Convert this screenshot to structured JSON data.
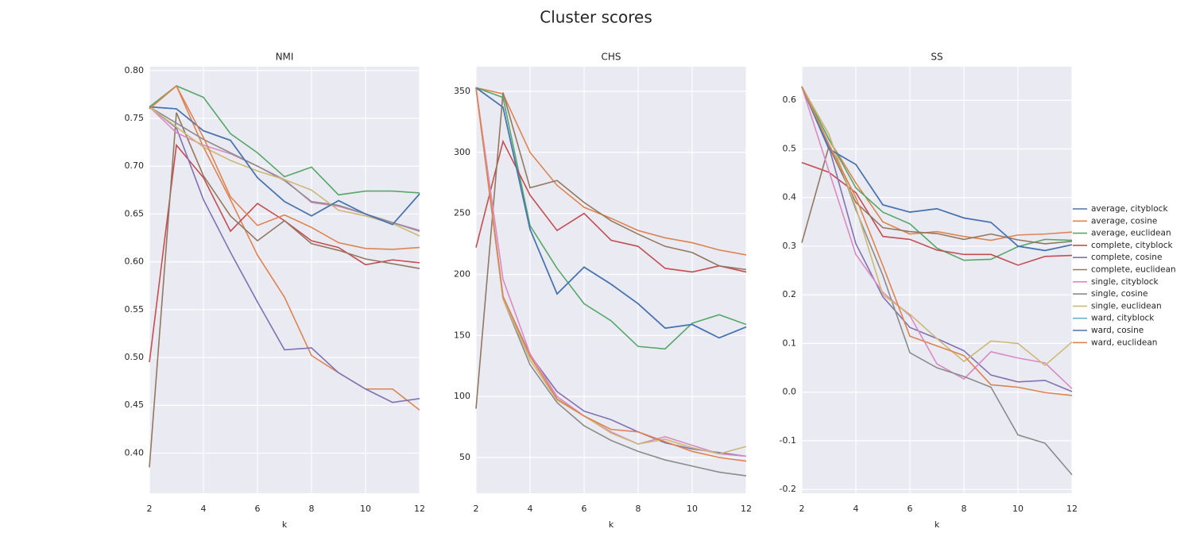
{
  "chart_data": {
    "type": "line",
    "title": "Cluster scores",
    "xlabel": "k",
    "x": [
      2,
      3,
      4,
      5,
      6,
      7,
      8,
      9,
      10,
      11,
      12
    ],
    "xlim": [
      2,
      12
    ],
    "xticks": [
      2,
      4,
      6,
      8,
      10,
      12
    ],
    "grid": true,
    "legend": "right",
    "series": [
      {
        "name": "average, cityblock",
        "color": "#4c72b0"
      },
      {
        "name": "average, cosine",
        "color": "#dd8452"
      },
      {
        "name": "average, euclidean",
        "color": "#55a868"
      },
      {
        "name": "complete, cityblock",
        "color": "#c44e52"
      },
      {
        "name": "complete, cosine",
        "color": "#8172b3"
      },
      {
        "name": "complete, euclidean",
        "color": "#937860"
      },
      {
        "name": "single, cityblock",
        "color": "#da8bc3"
      },
      {
        "name": "single, cosine",
        "color": "#8c8c8c"
      },
      {
        "name": "single, euclidean",
        "color": "#ccb974"
      },
      {
        "name": "ward, cityblock",
        "color": "#64b5cd"
      },
      {
        "name": "ward, cosine",
        "color": "#4c72b0"
      },
      {
        "name": "ward, euclidean",
        "color": "#dd8452"
      }
    ],
    "panels": [
      {
        "title": "NMI",
        "ylim": [
          0.358,
          0.804
        ],
        "yticks": [
          {
            "value": 0.4,
            "label": "0.40"
          },
          0.45,
          {
            "value": 0.5,
            "label": "0.50"
          },
          0.55,
          {
            "value": 0.6,
            "label": "0.60"
          },
          0.65,
          {
            "value": 0.7,
            "label": "0.70"
          },
          0.75,
          {
            "value": 0.8,
            "label": "0.80"
          }
        ],
        "values": [
          [
            0.762,
            0.76,
            0.737,
            0.727,
            0.688,
            0.663,
            0.648,
            0.664,
            0.65,
            0.639,
            0.671
          ],
          [
            0.76,
            0.784,
            0.72,
            0.665,
            0.607,
            0.563,
            0.502,
            0.484,
            0.467,
            0.467,
            0.445
          ],
          [
            0.762,
            0.784,
            0.772,
            0.734,
            0.714,
            0.689,
            0.699,
            0.67,
            0.674,
            0.674,
            0.672
          ],
          [
            0.495,
            0.722,
            0.688,
            0.632,
            0.661,
            0.643,
            0.622,
            0.615,
            0.597,
            0.602,
            0.599
          ],
          [
            0.762,
            0.74,
            0.665,
            0.61,
            0.558,
            0.508,
            0.51,
            0.484,
            0.467,
            0.453,
            0.457
          ],
          [
            0.385,
            0.756,
            0.69,
            0.648,
            0.622,
            0.643,
            0.619,
            0.612,
            0.603,
            0.598,
            0.593
          ],
          [
            0.762,
            0.735,
            0.722,
            0.713,
            0.7,
            0.686,
            0.662,
            0.658,
            0.65,
            0.641,
            0.633
          ],
          [
            0.762,
            0.745,
            0.728,
            0.714,
            0.7,
            0.685,
            0.663,
            0.659,
            0.65,
            0.641,
            0.632
          ],
          [
            0.762,
            0.741,
            0.72,
            0.706,
            0.695,
            0.686,
            0.675,
            0.654,
            0.648,
            0.64,
            0.627
          ],
          [
            0.762,
            0.76,
            0.737,
            0.727,
            0.688,
            0.663,
            0.648,
            0.664,
            0.65,
            0.639,
            0.671
          ],
          [
            0.762,
            0.76,
            0.737,
            0.727,
            0.688,
            0.663,
            0.648,
            0.664,
            0.65,
            0.639,
            0.671
          ],
          [
            0.76,
            0.784,
            0.73,
            0.668,
            0.638,
            0.649,
            0.636,
            0.62,
            0.614,
            0.613,
            0.615
          ]
        ]
      },
      {
        "title": "CHS",
        "ylim": [
          20.7,
          370.2
        ],
        "yticks": [
          50,
          100,
          150,
          200,
          250,
          300,
          350
        ],
        "values": [
          [
            353,
            337,
            237,
            184,
            206,
            192,
            176,
            156,
            159,
            148,
            157
          ],
          [
            353,
            348,
            300,
            273,
            255,
            246,
            236,
            230,
            226,
            220,
            216
          ],
          [
            353,
            345,
            240,
            205,
            176,
            162,
            141,
            139,
            160,
            167,
            159
          ],
          [
            222,
            309,
            265,
            236,
            250,
            228,
            223,
            205,
            202,
            207,
            202
          ],
          [
            353,
            182,
            134,
            104,
            88,
            81,
            71,
            62,
            57,
            54,
            51
          ],
          [
            90,
            349,
            271,
            277,
            259,
            244,
            233,
            223,
            218,
            207,
            204
          ],
          [
            353,
            196,
            135,
            100,
            84,
            71,
            61,
            67,
            60,
            53,
            51
          ],
          [
            353,
            180,
            126,
            95,
            76,
            64,
            55,
            48,
            43,
            38,
            35
          ],
          [
            353,
            180,
            130,
            97,
            84,
            70,
            61,
            65,
            58,
            53,
            59
          ],
          [
            353,
            337,
            237,
            184,
            206,
            192,
            176,
            156,
            159,
            148,
            157
          ],
          [
            353,
            337,
            237,
            184,
            206,
            192,
            176,
            156,
            159,
            148,
            157
          ],
          [
            353,
            182,
            133,
            98,
            84,
            73,
            71,
            63,
            55,
            50,
            47
          ]
        ]
      },
      {
        "title": "SS",
        "ylim": [
          -0.208,
          0.669
        ],
        "yticks": [
          -0.2,
          -0.1,
          {
            "value": 0,
            "label": "0.0"
          },
          0.1,
          0.2,
          0.3,
          0.4,
          0.5,
          0.6
        ],
        "values": [
          [
            0.628,
            0.5,
            0.468,
            0.385,
            0.37,
            0.377,
            0.358,
            0.349,
            0.3,
            0.291,
            0.303
          ],
          [
            0.628,
            0.52,
            0.43,
            0.35,
            0.325,
            0.33,
            0.32,
            0.312,
            0.323,
            0.325,
            0.329
          ],
          [
            0.628,
            0.52,
            0.42,
            0.37,
            0.346,
            0.296,
            0.271,
            0.273,
            0.299,
            0.314,
            0.312
          ],
          [
            0.472,
            0.452,
            0.41,
            0.32,
            0.314,
            0.292,
            0.283,
            0.283,
            0.261,
            0.279,
            0.281
          ],
          [
            0.628,
            0.505,
            0.305,
            0.196,
            0.133,
            0.11,
            0.085,
            0.035,
            0.021,
            0.024,
            0.001
          ],
          [
            0.307,
            0.505,
            0.39,
            0.338,
            0.33,
            0.326,
            0.314,
            0.325,
            0.313,
            0.305,
            0.31
          ],
          [
            0.628,
            0.455,
            0.283,
            0.205,
            0.157,
            0.058,
            0.027,
            0.083,
            0.07,
            0.06,
            0.007
          ],
          [
            0.628,
            0.53,
            0.375,
            0.24,
            0.081,
            0.05,
            0.032,
            0.01,
            -0.088,
            -0.105,
            -0.17
          ],
          [
            0.628,
            0.53,
            0.38,
            0.2,
            0.16,
            0.11,
            0.063,
            0.105,
            0.1,
            0.055,
            0.103
          ],
          [
            0.628,
            0.5,
            0.468,
            0.385,
            0.37,
            0.377,
            0.358,
            0.349,
            0.3,
            0.291,
            0.303
          ],
          [
            0.628,
            0.5,
            0.468,
            0.385,
            0.37,
            0.377,
            0.358,
            0.349,
            0.3,
            0.291,
            0.303
          ],
          [
            0.628,
            0.51,
            0.4,
            0.26,
            0.115,
            0.095,
            0.075,
            0.015,
            0.01,
            -0.001,
            -0.007
          ]
        ]
      }
    ]
  }
}
